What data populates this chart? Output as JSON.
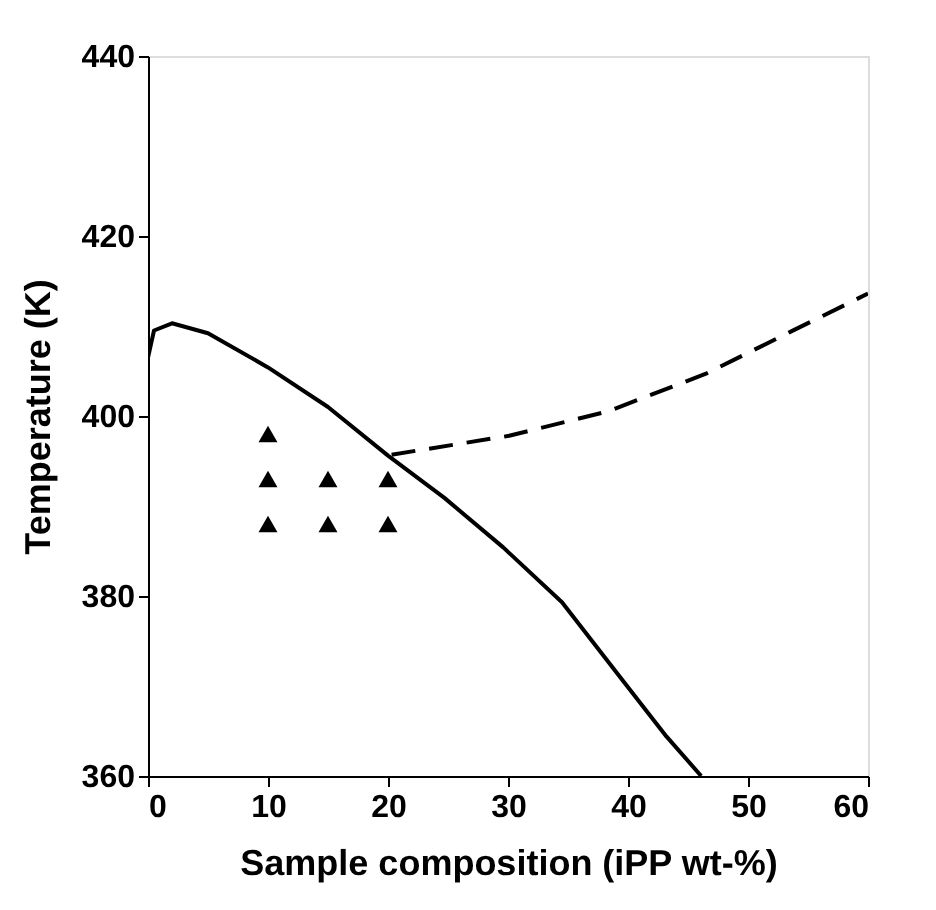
{
  "chart_data": {
    "type": "line",
    "xlabel": "Sample composition (iPP wt-%)",
    "ylabel": "Temperature (K)",
    "xlim": [
      0,
      60
    ],
    "xticks": [
      0,
      10,
      20,
      30,
      40,
      50,
      60
    ],
    "ylim": [
      360,
      440
    ],
    "yticks": [
      360,
      380,
      400,
      420,
      440
    ],
    "grid": false,
    "series": [
      {
        "line_style": "solid",
        "color": "#000000",
        "x": [
          0,
          0.5,
          2,
          5,
          10,
          15,
          20,
          24.7,
          29.6,
          34.5,
          39.4,
          43.2,
          46.1
        ],
        "values": [
          406.5,
          409.5,
          410.3,
          409.2,
          405.4,
          401.0,
          395.6,
          390.9,
          385.4,
          379.3,
          370.9,
          364.4,
          360
        ]
      },
      {
        "type": "line",
        "line_style": "dashed",
        "color": "#000000",
        "x": [
          20.3,
          30.1,
          38.3,
          46.5,
          53.6,
          60
        ],
        "values": [
          395.7,
          397.8,
          400.5,
          404.7,
          409.4,
          413.6
        ]
      },
      {
        "type": "scatter",
        "marker": "triangle",
        "color": "#000000",
        "x": [
          10,
          10,
          10,
          15,
          15,
          20,
          20
        ],
        "values": [
          398,
          393,
          388,
          393,
          388,
          393,
          388
        ]
      }
    ]
  }
}
